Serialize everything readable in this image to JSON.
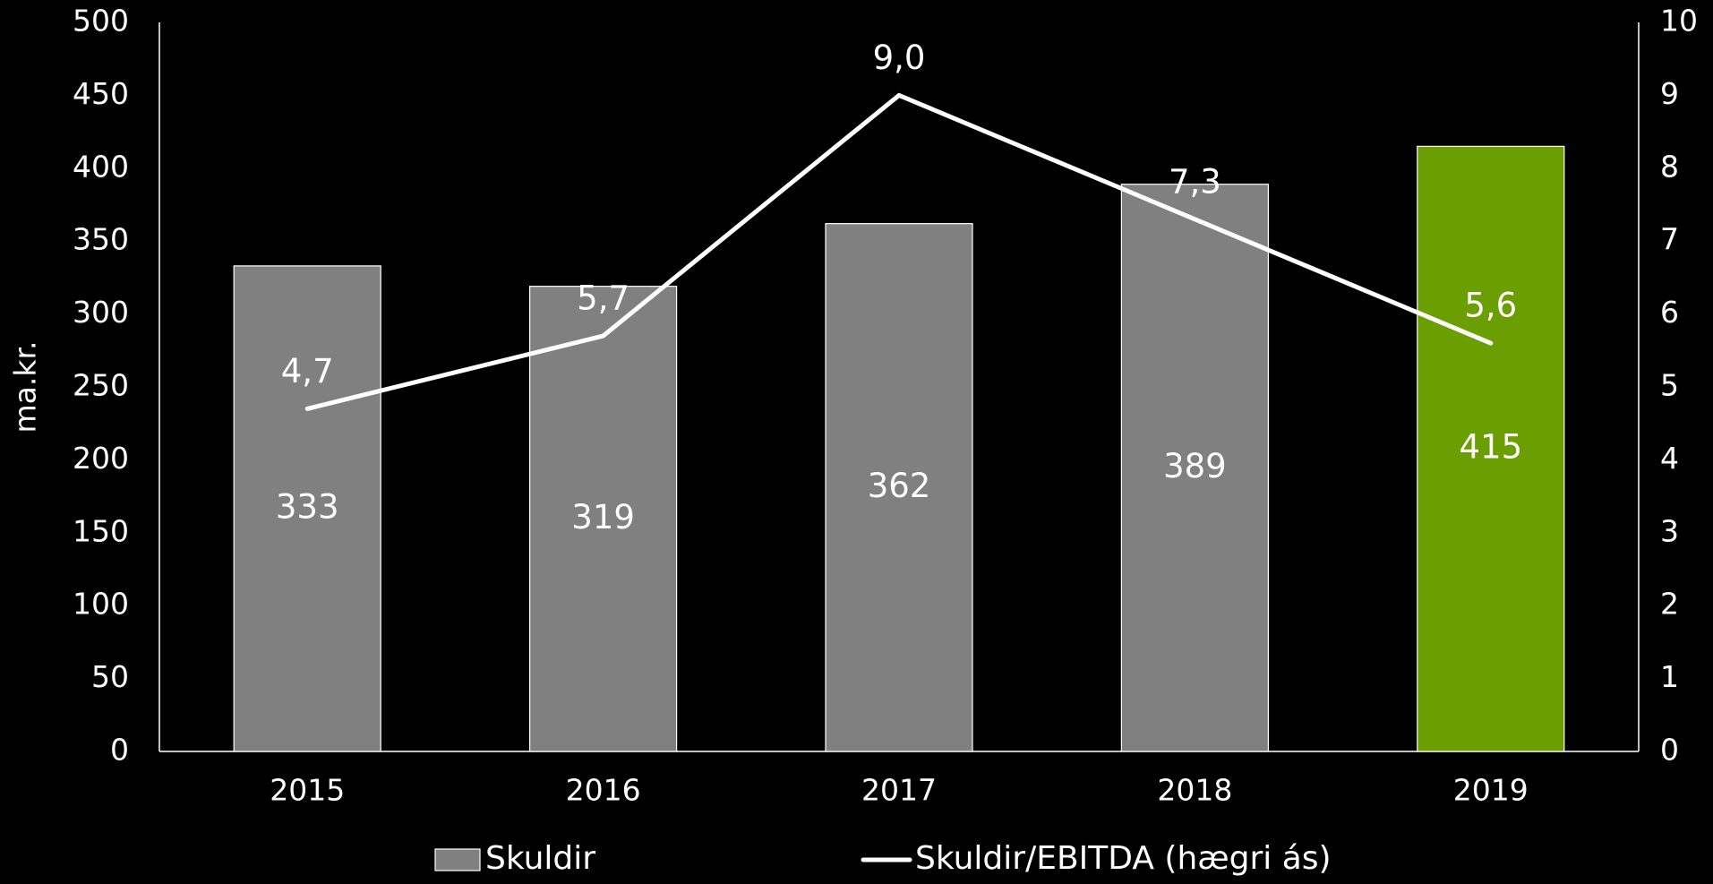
{
  "chart_data": {
    "type": "bar",
    "categories": [
      "2015",
      "2016",
      "2017",
      "2018",
      "2019"
    ],
    "series": [
      {
        "name": "Skuldir",
        "kind": "bar",
        "axis": "left",
        "values": [
          333,
          319,
          362,
          389,
          415
        ],
        "labels": [
          "333",
          "319",
          "362",
          "389",
          "415"
        ],
        "colors": [
          "#808080",
          "#808080",
          "#808080",
          "#808080",
          "#6b9e00"
        ]
      },
      {
        "name": "Skuldir/EBITDA (hægri ás)",
        "kind": "line",
        "axis": "right",
        "values": [
          4.7,
          5.7,
          9.0,
          7.3,
          5.6
        ],
        "labels": [
          "4,7",
          "5,7",
          "9,0",
          "7,3",
          "5,6"
        ],
        "color": "#ffffff"
      }
    ],
    "ylabel": "ma.kr.",
    "ylim": [
      0,
      500
    ],
    "y_ticks": [
      "0",
      "50",
      "100",
      "150",
      "200",
      "250",
      "300",
      "350",
      "400",
      "450",
      "500"
    ],
    "y2lim": [
      0,
      10
    ],
    "y2_ticks": [
      "0",
      "1",
      "2",
      "3",
      "4",
      "5",
      "6",
      "7",
      "8",
      "9",
      "10"
    ],
    "grid": false,
    "legend_position": "bottom",
    "colors": {
      "background": "#000000",
      "bar": "#808080",
      "bar_highlight": "#6b9e00",
      "axis": "#ffffff",
      "line": "#ffffff"
    }
  }
}
